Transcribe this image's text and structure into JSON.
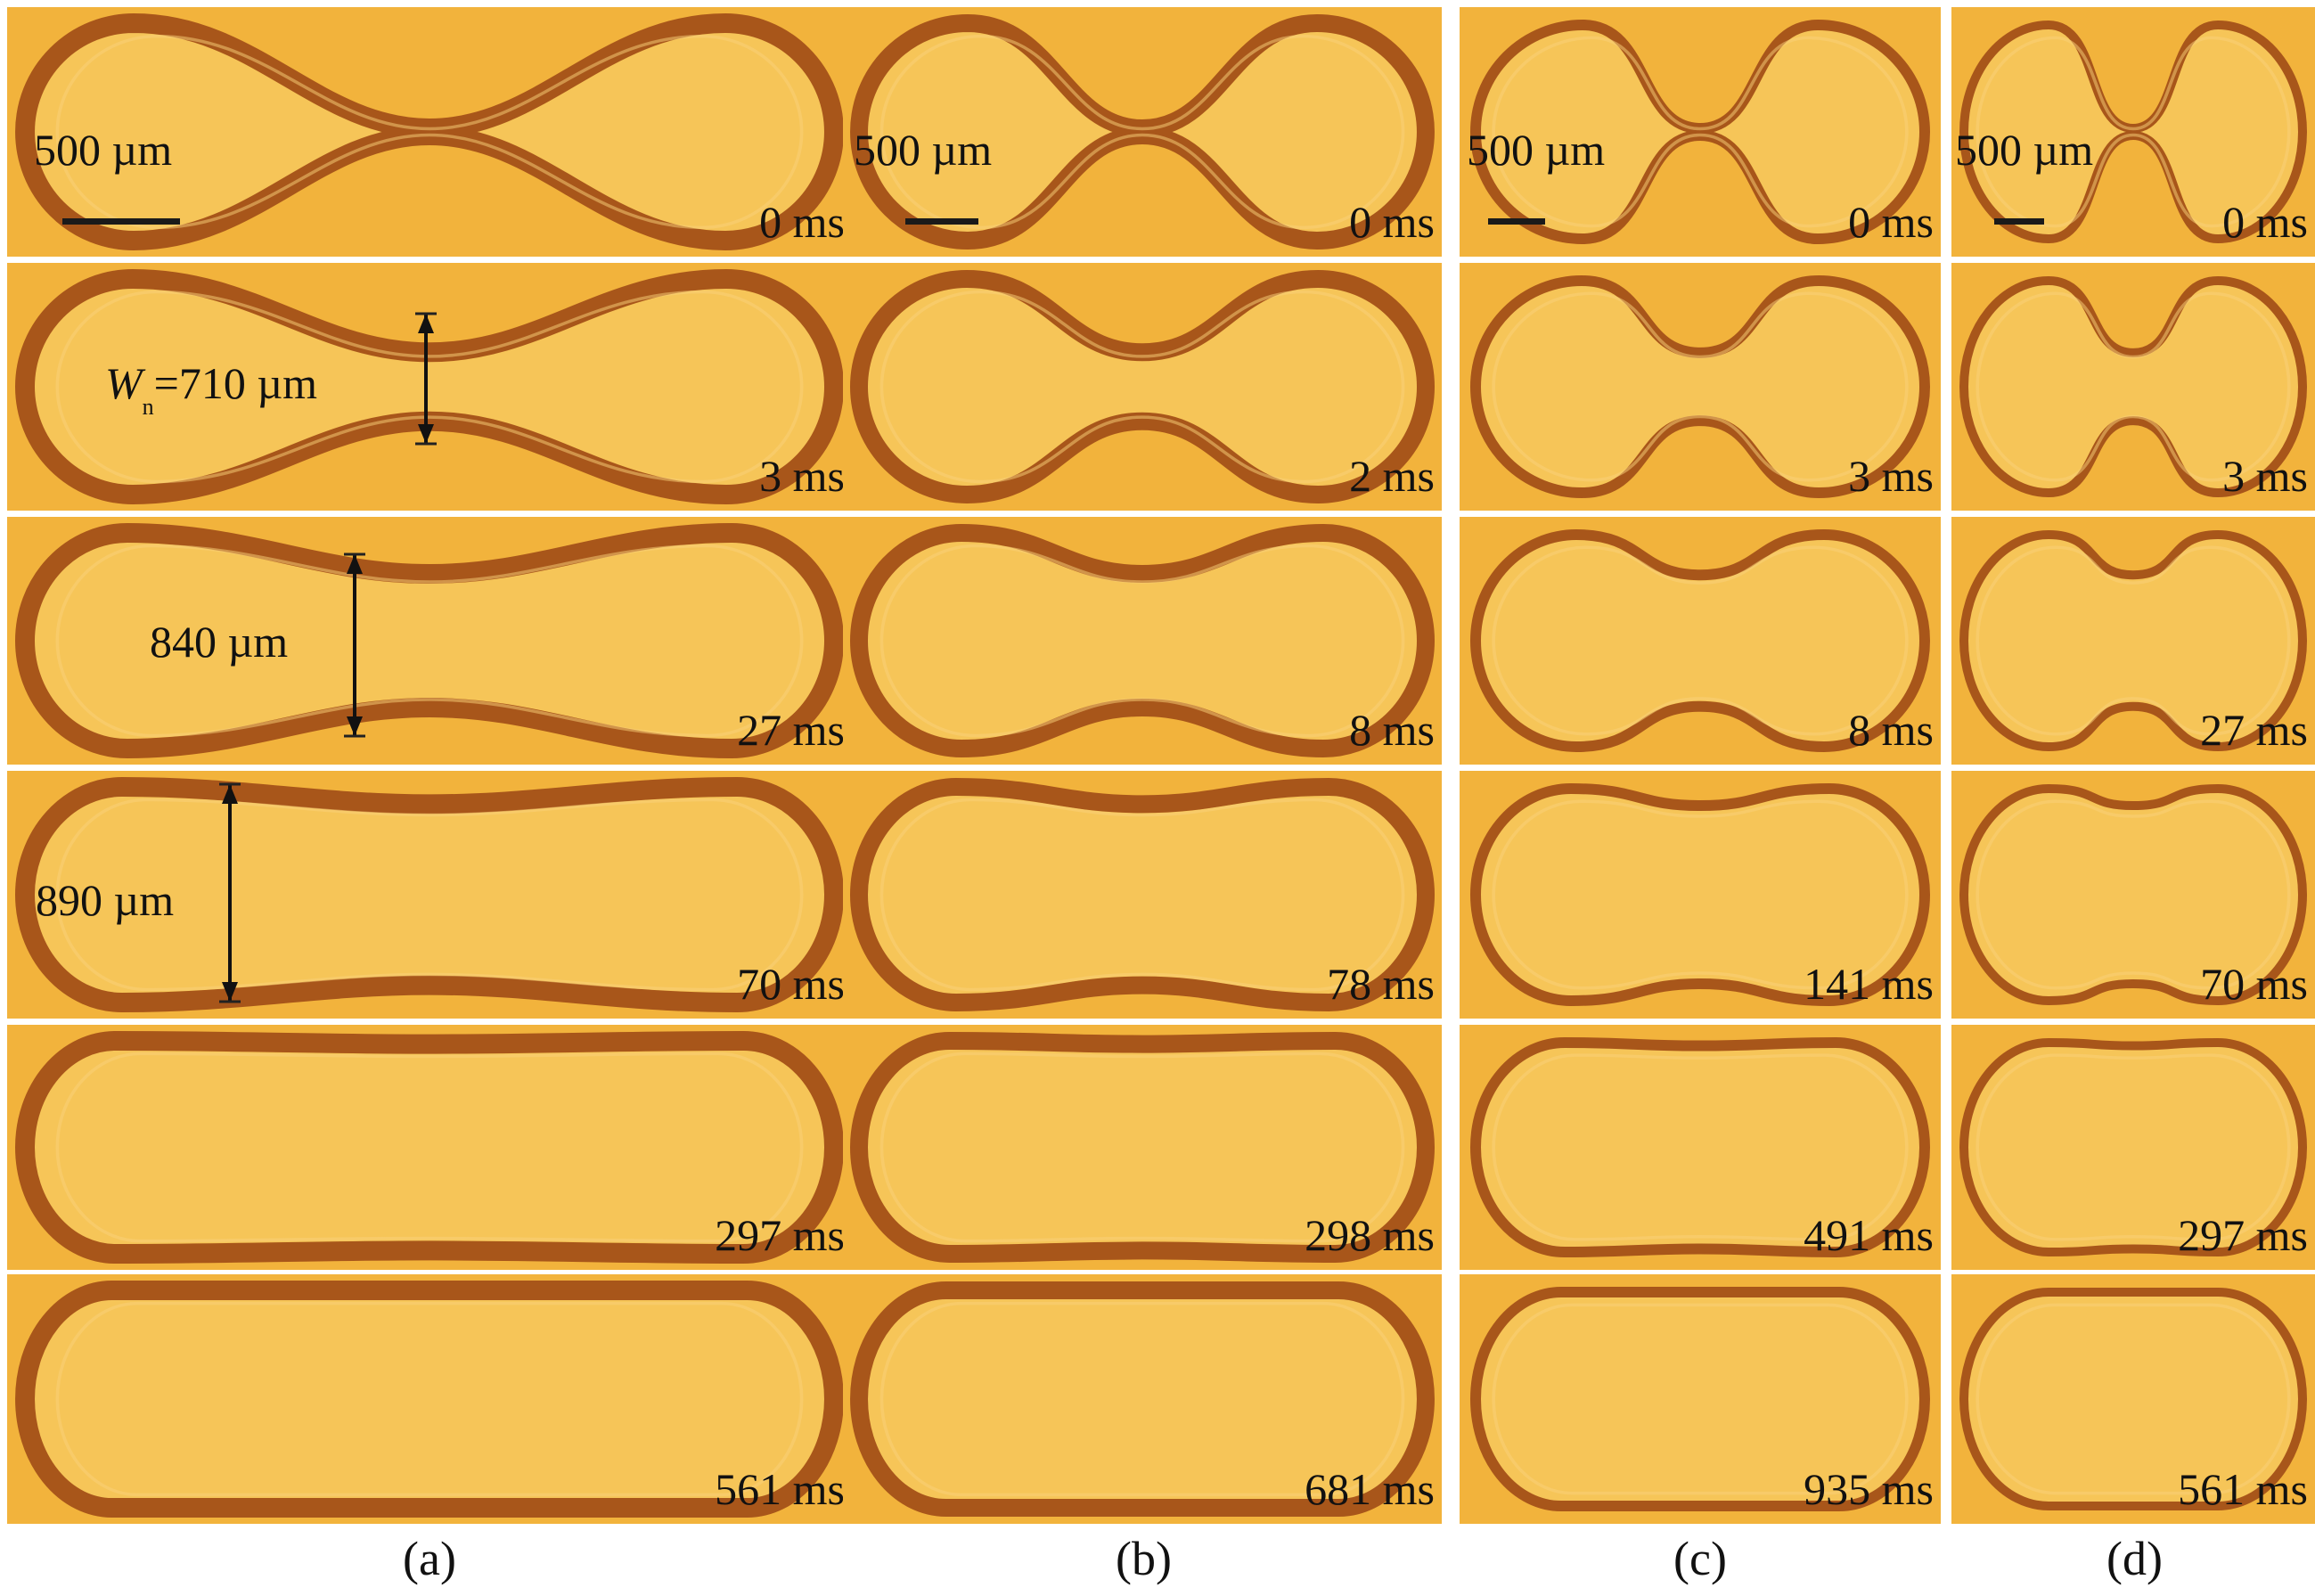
{
  "figure": {
    "scale_label": "500 µm",
    "panels": [
      {
        "label": "(a)",
        "times": [
          "0 ms",
          "3 ms",
          "27 ms",
          "70 ms",
          "297 ms",
          "561 ms"
        ]
      },
      {
        "label": "(b)",
        "times": [
          "0 ms",
          "2 ms",
          "8 ms",
          "78 ms",
          "298 ms",
          "681 ms"
        ]
      },
      {
        "label": "(c)",
        "times": [
          "0 ms",
          "3 ms",
          "8 ms",
          "141 ms",
          "491 ms",
          "935 ms"
        ]
      },
      {
        "label": "(d)",
        "times": [
          "0 ms",
          "3 ms",
          "27 ms",
          "70 ms",
          "297 ms",
          "561 ms"
        ]
      }
    ],
    "measurements": {
      "wn_symbol": "W",
      "wn_sub": "n",
      "wn_value": "=710 µm",
      "m2": "840 µm",
      "m3": "890 µm"
    },
    "colors": {
      "background": "#f2b33c",
      "outline": "#a8561a",
      "inner": "#f6c558"
    }
  }
}
